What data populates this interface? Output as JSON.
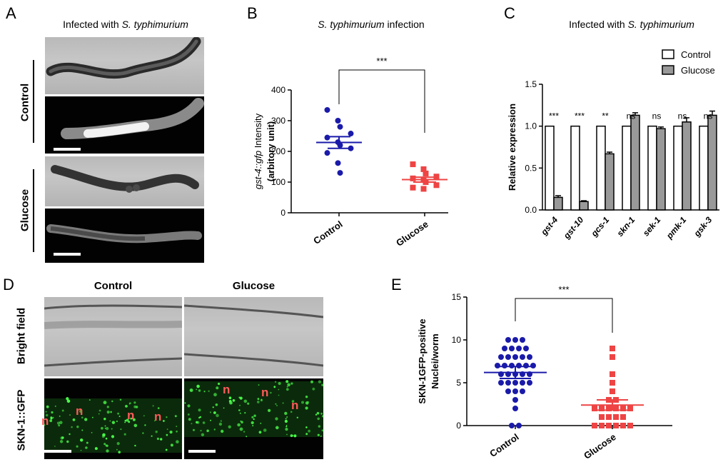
{
  "panel_a": {
    "label": "A",
    "title_prefix": "Infected with ",
    "title_italic": "S. typhimurium",
    "row_labels": [
      "Control",
      "Glucose"
    ]
  },
  "panel_b": {
    "label": "B",
    "title_italic": "S. typhimurium",
    "title_suffix": " infection",
    "significance": "***"
  },
  "panel_c": {
    "label": "C",
    "title_prefix": "Infected with ",
    "title_italic": "S. typhimurium",
    "legend": [
      "Control",
      "Glucose"
    ]
  },
  "panel_d": {
    "label": "D",
    "col_labels": [
      "Control",
      "Glucose"
    ],
    "row_labels": [
      "Bright field",
      "SKN-1::GFP"
    ],
    "nucleus_marker": "n"
  },
  "panel_e": {
    "label": "E",
    "significance": "***"
  },
  "chart_data": [
    {
      "type": "scatter",
      "panel": "B",
      "categories": [
        "Control",
        "Glucose"
      ],
      "ylabel_italic": "gst-4::gfp",
      "ylabel": " Intensity",
      "ylabel2": "(arbitory unit)",
      "ylim": [
        0,
        400
      ],
      "yticks": [
        0,
        100,
        200,
        300,
        400
      ],
      "series": [
        {
          "name": "Control",
          "color": "#1a1aaa",
          "values": [
            335,
            300,
            280,
            258,
            245,
            230,
            220,
            210,
            195,
            162,
            130
          ],
          "mean": 229,
          "sem": 19
        },
        {
          "name": "Glucose",
          "color": "#ee4444",
          "values": [
            158,
            142,
            128,
            118,
            112,
            108,
            100,
            90,
            82,
            78
          ],
          "mean": 108,
          "sem": 8
        }
      ],
      "significance": "***"
    },
    {
      "type": "bar",
      "panel": "C",
      "categories": [
        "gst-4",
        "gst-10",
        "gcs-1",
        "skn-1",
        "sek-1",
        "pmk-1",
        "gsk-3"
      ],
      "ylabel": "Relative expression",
      "ylim": [
        0,
        1.5
      ],
      "yticks": [
        "0.0",
        "0.5",
        "1.0",
        "1.5"
      ],
      "series": [
        {
          "name": "Control",
          "color": "#ffffff",
          "values": [
            1,
            1,
            1,
            1,
            1,
            1,
            1
          ]
        },
        {
          "name": "Glucose",
          "color": "#999999",
          "values": [
            0.15,
            0.1,
            0.67,
            1.13,
            0.97,
            1.05,
            1.13
          ],
          "errors": [
            0.02,
            0.01,
            0.02,
            0.03,
            0.02,
            0.05,
            0.05
          ]
        }
      ],
      "annotations": [
        "***",
        "***",
        "**",
        "ns",
        "ns",
        "ns",
        "ns"
      ],
      "legend_position": "top-right"
    },
    {
      "type": "scatter",
      "panel": "E",
      "categories": [
        "Control",
        "Glucose"
      ],
      "ylabel": "SKN-1GFP-positive",
      "ylabel2": "Nuclei/worm",
      "ylim": [
        0,
        15
      ],
      "yticks": [
        0,
        5,
        10,
        15
      ],
      "series": [
        {
          "name": "Control",
          "color": "#1a1aaa",
          "points": [
            [
              10,
              3
            ],
            [
              9,
              4
            ],
            [
              8,
              5
            ],
            [
              7,
              6
            ],
            [
              6,
              5
            ],
            [
              5,
              5
            ],
            [
              4,
              3
            ],
            [
              3,
              1
            ],
            [
              2,
              1
            ],
            [
              0,
              2
            ]
          ],
          "mean": 6.2,
          "sem": 0.7
        },
        {
          "name": "Glucose",
          "color": "#ee4444",
          "points": [
            [
              9,
              1
            ],
            [
              8,
              1
            ],
            [
              6,
              1
            ],
            [
              5,
              1
            ],
            [
              4,
              1
            ],
            [
              3,
              2
            ],
            [
              2,
              6
            ],
            [
              1,
              4
            ],
            [
              0,
              6
            ]
          ],
          "mean": 2.4,
          "sem": 0.6
        }
      ],
      "significance": "***"
    }
  ]
}
